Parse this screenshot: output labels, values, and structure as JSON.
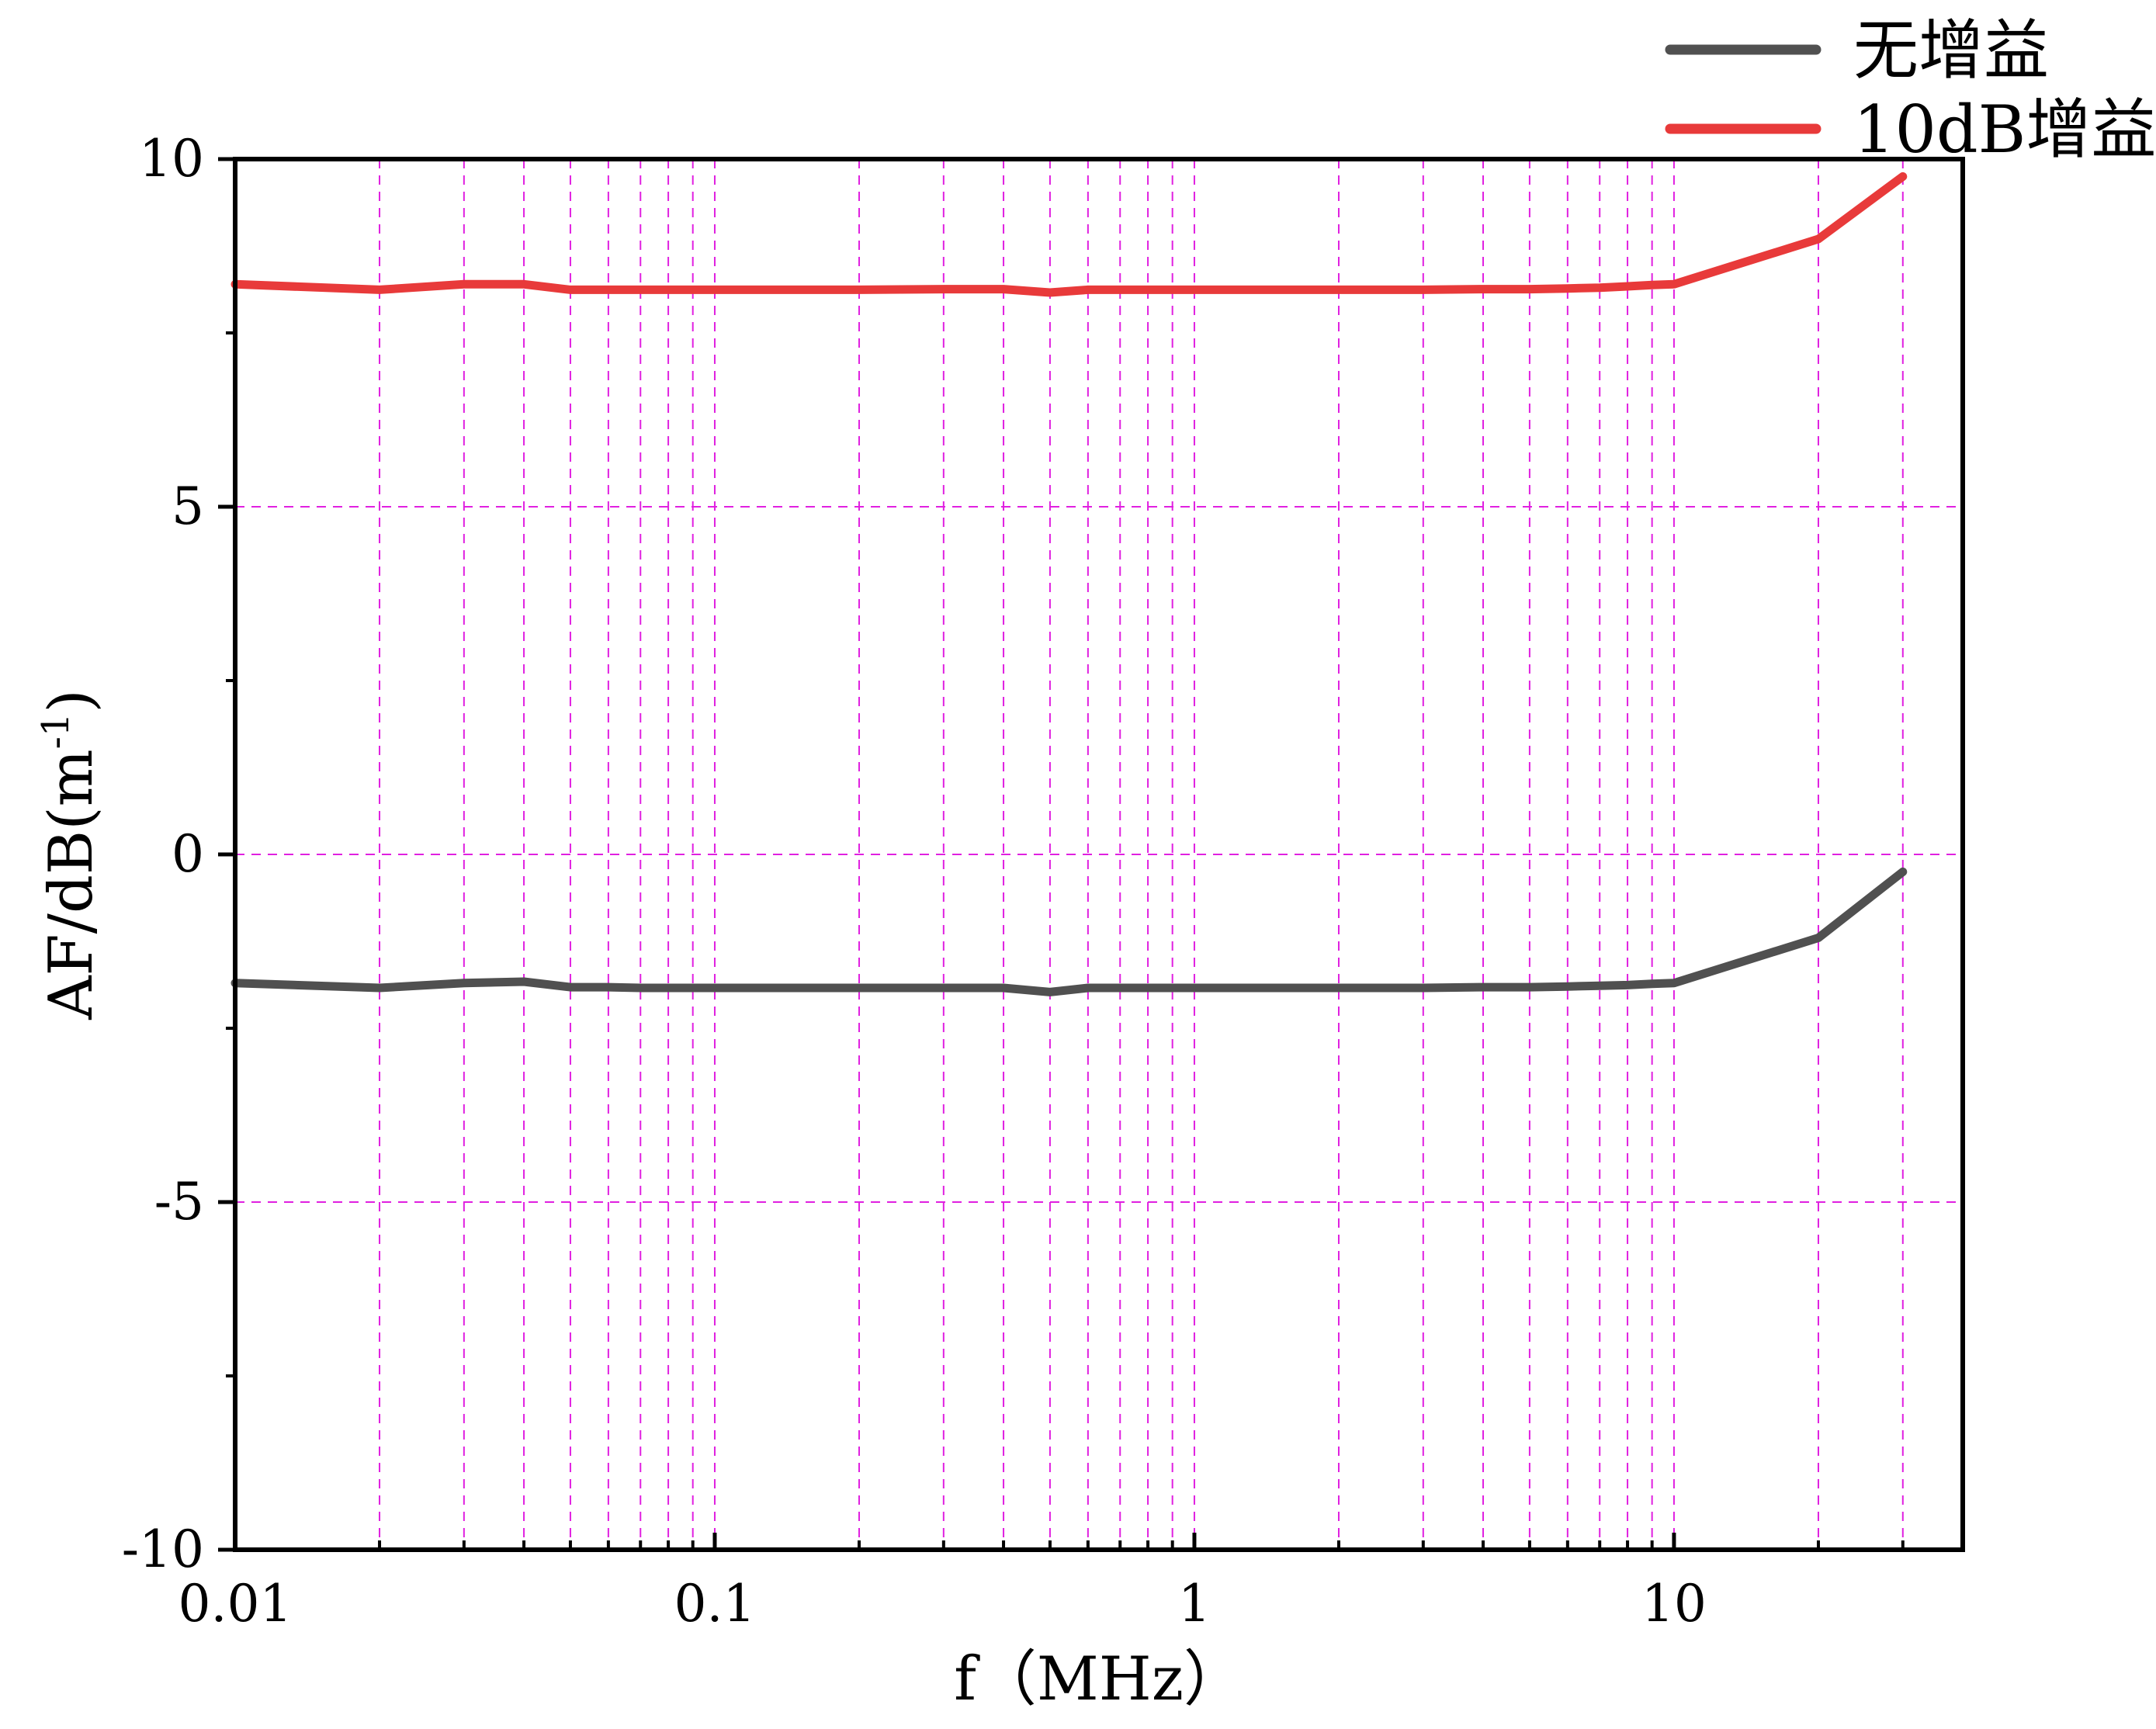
{
  "chart_data": {
    "type": "line",
    "title": "",
    "xlabel": "f（MHz）",
    "ylabel": "AF/dB(m",
    "ylabel_sup": "-1",
    "ylabel_close": ")",
    "xscale": "log",
    "xlim": [
      0.01,
      40
    ],
    "ylim": [
      -10,
      10
    ],
    "x_ticks": [
      0.01,
      0.1,
      1,
      10
    ],
    "x_tick_labels": [
      "0.01",
      "0.1",
      "1",
      "10"
    ],
    "y_ticks": [
      -10,
      -5,
      0,
      5,
      10
    ],
    "y_tick_labels": [
      "-10",
      "-5",
      "0",
      "5",
      "10"
    ],
    "grid": "on (dashed, minor log gridlines)",
    "legend_position": "top-right, outside plot",
    "x": [
      0.01,
      0.02,
      0.03,
      0.04,
      0.05,
      0.06,
      0.07,
      0.08,
      0.09,
      0.1,
      0.2,
      0.3,
      0.4,
      0.5,
      0.6,
      0.7,
      0.8,
      0.9,
      1,
      2,
      3,
      4,
      5,
      6,
      7,
      8,
      9,
      10,
      20,
      30
    ],
    "series": [
      {
        "name": "无增益",
        "color": "#505050",
        "values": [
          -1.85,
          -1.92,
          -1.85,
          -1.83,
          -1.91,
          -1.91,
          -1.92,
          -1.92,
          -1.92,
          -1.92,
          -1.92,
          -1.92,
          -1.92,
          -1.98,
          -1.92,
          -1.92,
          -1.92,
          -1.92,
          -1.92,
          -1.92,
          -1.92,
          -1.91,
          -1.91,
          -1.9,
          -1.89,
          -1.88,
          -1.86,
          -1.85,
          -1.2,
          -0.25
        ]
      },
      {
        "name": "10dB增益",
        "color": "#e83a3a",
        "values": [
          8.2,
          8.12,
          8.2,
          8.2,
          8.12,
          8.12,
          8.12,
          8.12,
          8.12,
          8.12,
          8.12,
          8.13,
          8.13,
          8.08,
          8.12,
          8.12,
          8.12,
          8.12,
          8.12,
          8.12,
          8.12,
          8.13,
          8.13,
          8.14,
          8.15,
          8.17,
          8.19,
          8.2,
          8.85,
          9.75
        ]
      }
    ],
    "colors": {
      "grid": "#e020e0",
      "axes": "#000000"
    }
  }
}
